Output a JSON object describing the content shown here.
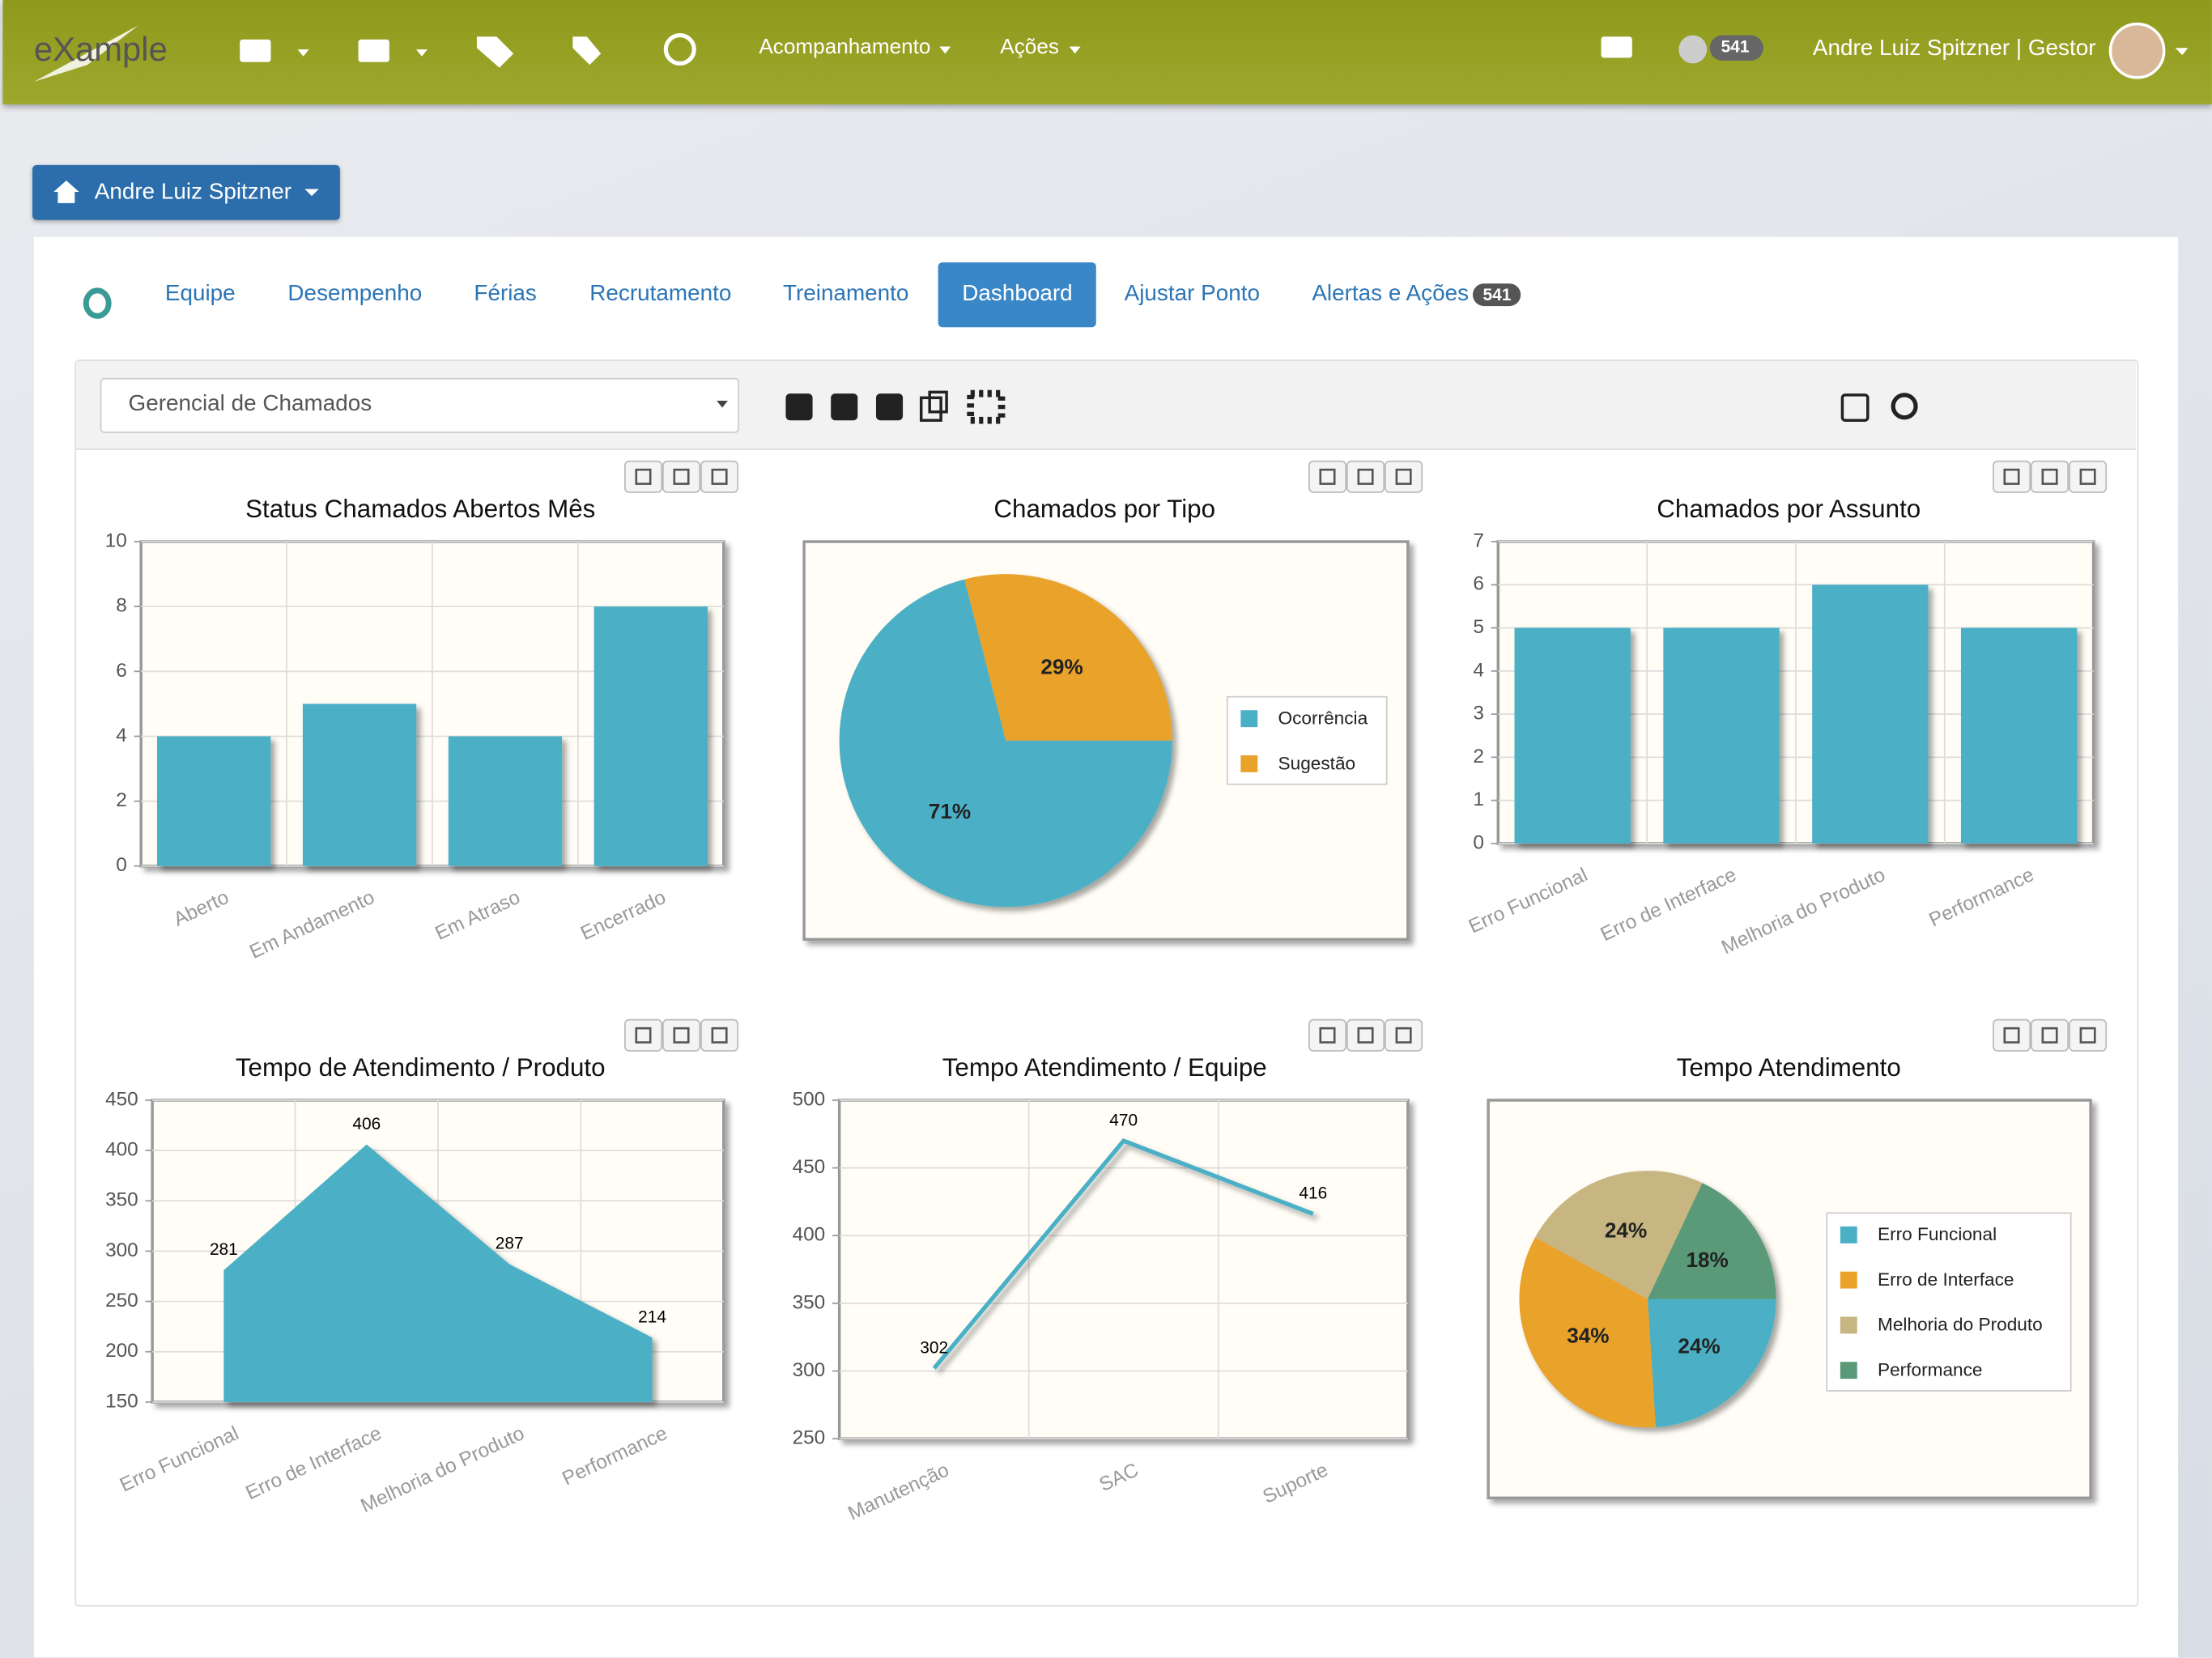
{
  "navbar": {
    "logo": "eXample",
    "menus": [
      "Acompanhamento",
      "Ações"
    ],
    "notifications": 541,
    "user": "Andre Luiz Spitzner | Gestor"
  },
  "breadcrumb": "Andre Luiz Spitzner",
  "tabs": {
    "items": [
      "Equipe",
      "Desempenho",
      "Férias",
      "Recrutamento",
      "Treinamento",
      "Dashboard",
      "Ajustar Ponto",
      "Alertas e Ações"
    ],
    "active": 5,
    "badge": 541
  },
  "selector": "Gerencial de Chamados",
  "chart_data": [
    {
      "type": "bar",
      "title": "Status Chamados Abertos Mês",
      "categories": [
        "Aberto",
        "Em Andamento",
        "Em Atraso",
        "Encerrado"
      ],
      "values": [
        4,
        5,
        4,
        8
      ],
      "color": "#4bb0c6",
      "ylim": [
        0,
        10
      ],
      "yticks": [
        0,
        2,
        4,
        6,
        8,
        10
      ],
      "grid": true
    },
    {
      "type": "pie",
      "title": "Chamados por Tipo",
      "categories": [
        "Ocorrência",
        "Sugestão"
      ],
      "values": [
        71,
        29
      ],
      "value_labels": [
        "71%",
        "29%"
      ],
      "colors": [
        "#4bb0c6",
        "#e9a22a"
      ],
      "legend": "right"
    },
    {
      "type": "bar",
      "title": "Chamados por Assunto",
      "categories": [
        "Erro Funcional",
        "Erro de Interface",
        "Melhoria do Produto",
        "Performance"
      ],
      "values": [
        5,
        5,
        6,
        5
      ],
      "color": "#4bb0c6",
      "ylim": [
        0,
        7
      ],
      "yticks": [
        0,
        1,
        2,
        3,
        4,
        5,
        6,
        7
      ],
      "grid": true
    },
    {
      "type": "area",
      "title": "Tempo de Atendimento / Produto",
      "categories": [
        "Erro Funcional",
        "Erro de Interface",
        "Melhoria do Produto",
        "Performance"
      ],
      "values": [
        281,
        406,
        287,
        214
      ],
      "color": "#4bb0c6",
      "ylim": [
        150,
        450
      ],
      "yticks": [
        150,
        200,
        250,
        300,
        350,
        400,
        450
      ],
      "grid": true
    },
    {
      "type": "line",
      "title": "Tempo Atendimento / Equipe",
      "categories": [
        "Manutenção",
        "SAC",
        "Suporte"
      ],
      "values": [
        302,
        470,
        416
      ],
      "color": "#4bb0c6",
      "ylim": [
        250,
        500
      ],
      "yticks": [
        250,
        300,
        350,
        400,
        450,
        500
      ],
      "grid": true
    },
    {
      "type": "pie",
      "title": "Tempo Atendimento",
      "categories": [
        "Erro Funcional",
        "Erro de Interface",
        "Melhoria do Produto",
        "Performance"
      ],
      "values": [
        24,
        34,
        24,
        18
      ],
      "value_labels": [
        "24%",
        "34%",
        "24%",
        "18%"
      ],
      "colors": [
        "#4bb0c6",
        "#e9a22a",
        "#c8b682",
        "#5a9a78"
      ],
      "legend": "right"
    }
  ]
}
